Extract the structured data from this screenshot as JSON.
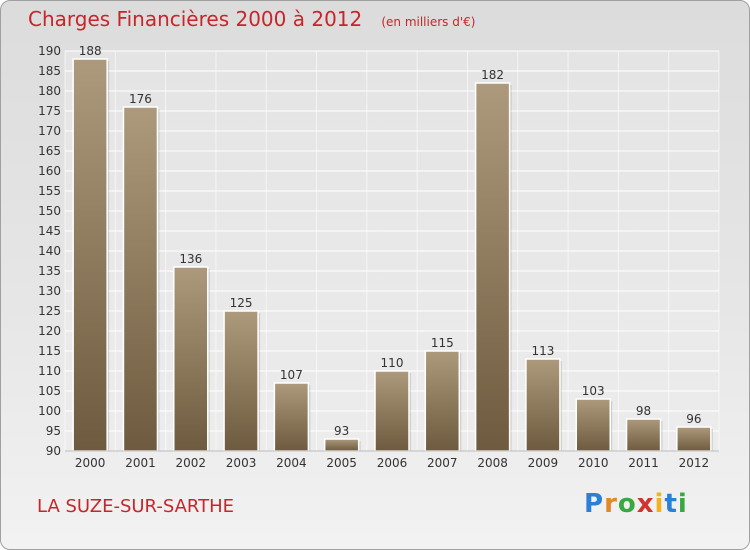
{
  "title": "Charges Financières 2000 à 2012",
  "unit_note": "(en milliers d'€)",
  "commune": "LA SUZE-SUR-SARTHE",
  "logo": {
    "text": "Proxiti",
    "letters": [
      "P",
      "r",
      "o",
      "x",
      "i",
      "t",
      "i"
    ]
  },
  "colors": {
    "title": "#c8252a",
    "bar_top": "#ad9a7c",
    "bar_bottom": "#6e5a3e"
  },
  "chart_data": {
    "type": "bar",
    "categories": [
      "2000",
      "2001",
      "2002",
      "2003",
      "2004",
      "2005",
      "2006",
      "2007",
      "2008",
      "2009",
      "2010",
      "2011",
      "2012"
    ],
    "values": [
      188,
      176,
      136,
      125,
      107,
      93,
      110,
      115,
      182,
      113,
      103,
      98,
      96
    ],
    "data_labels": [
      "188",
      "176",
      "136",
      "125",
      "107",
      "93",
      "110",
      "115",
      "182",
      "113",
      "103",
      "98",
      "96"
    ],
    "ylim": [
      90,
      190
    ],
    "yticks": [
      90,
      95,
      100,
      105,
      110,
      115,
      120,
      125,
      130,
      135,
      140,
      145,
      150,
      155,
      160,
      165,
      170,
      175,
      180,
      185,
      190
    ],
    "ytick_labels": [
      "90",
      "95",
      "100",
      "105",
      "110",
      "115",
      "120",
      "125",
      "130",
      "135",
      "140",
      "145",
      "150",
      "155",
      "160",
      "165",
      "170",
      "175",
      "180",
      "185",
      "190"
    ],
    "grid": true,
    "xlabel": "",
    "ylabel": ""
  }
}
